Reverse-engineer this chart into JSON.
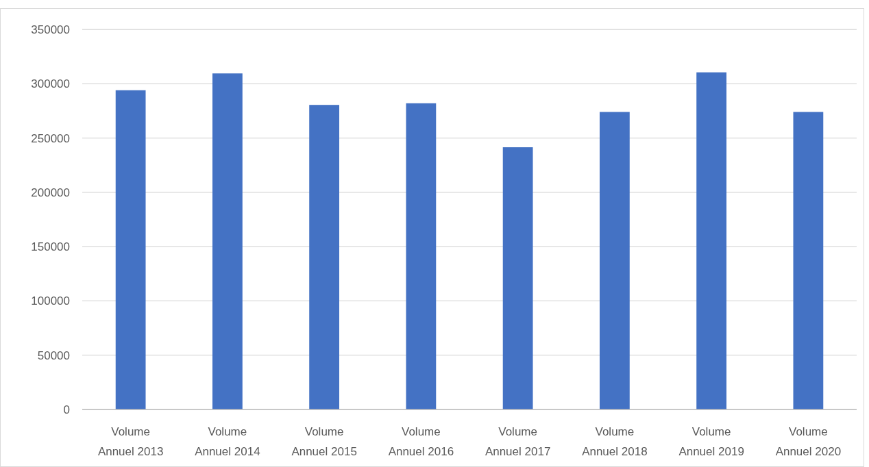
{
  "chart_data": {
    "type": "bar",
    "categories": [
      "Volume Annuel 2013",
      "Volume Annuel 2014",
      "Volume Annuel 2015",
      "Volume Annuel 2016",
      "Volume Annuel 2017",
      "Volume Annuel 2018",
      "Volume Annuel 2019",
      "Volume Annuel 2020"
    ],
    "values": [
      294000,
      309500,
      280500,
      282000,
      241500,
      274000,
      310500,
      274000
    ],
    "color": "#4472c4",
    "ylim": [
      0,
      350000
    ],
    "yticks": [
      0,
      50000,
      100000,
      150000,
      200000,
      250000,
      300000,
      350000
    ],
    "grid": "y"
  }
}
